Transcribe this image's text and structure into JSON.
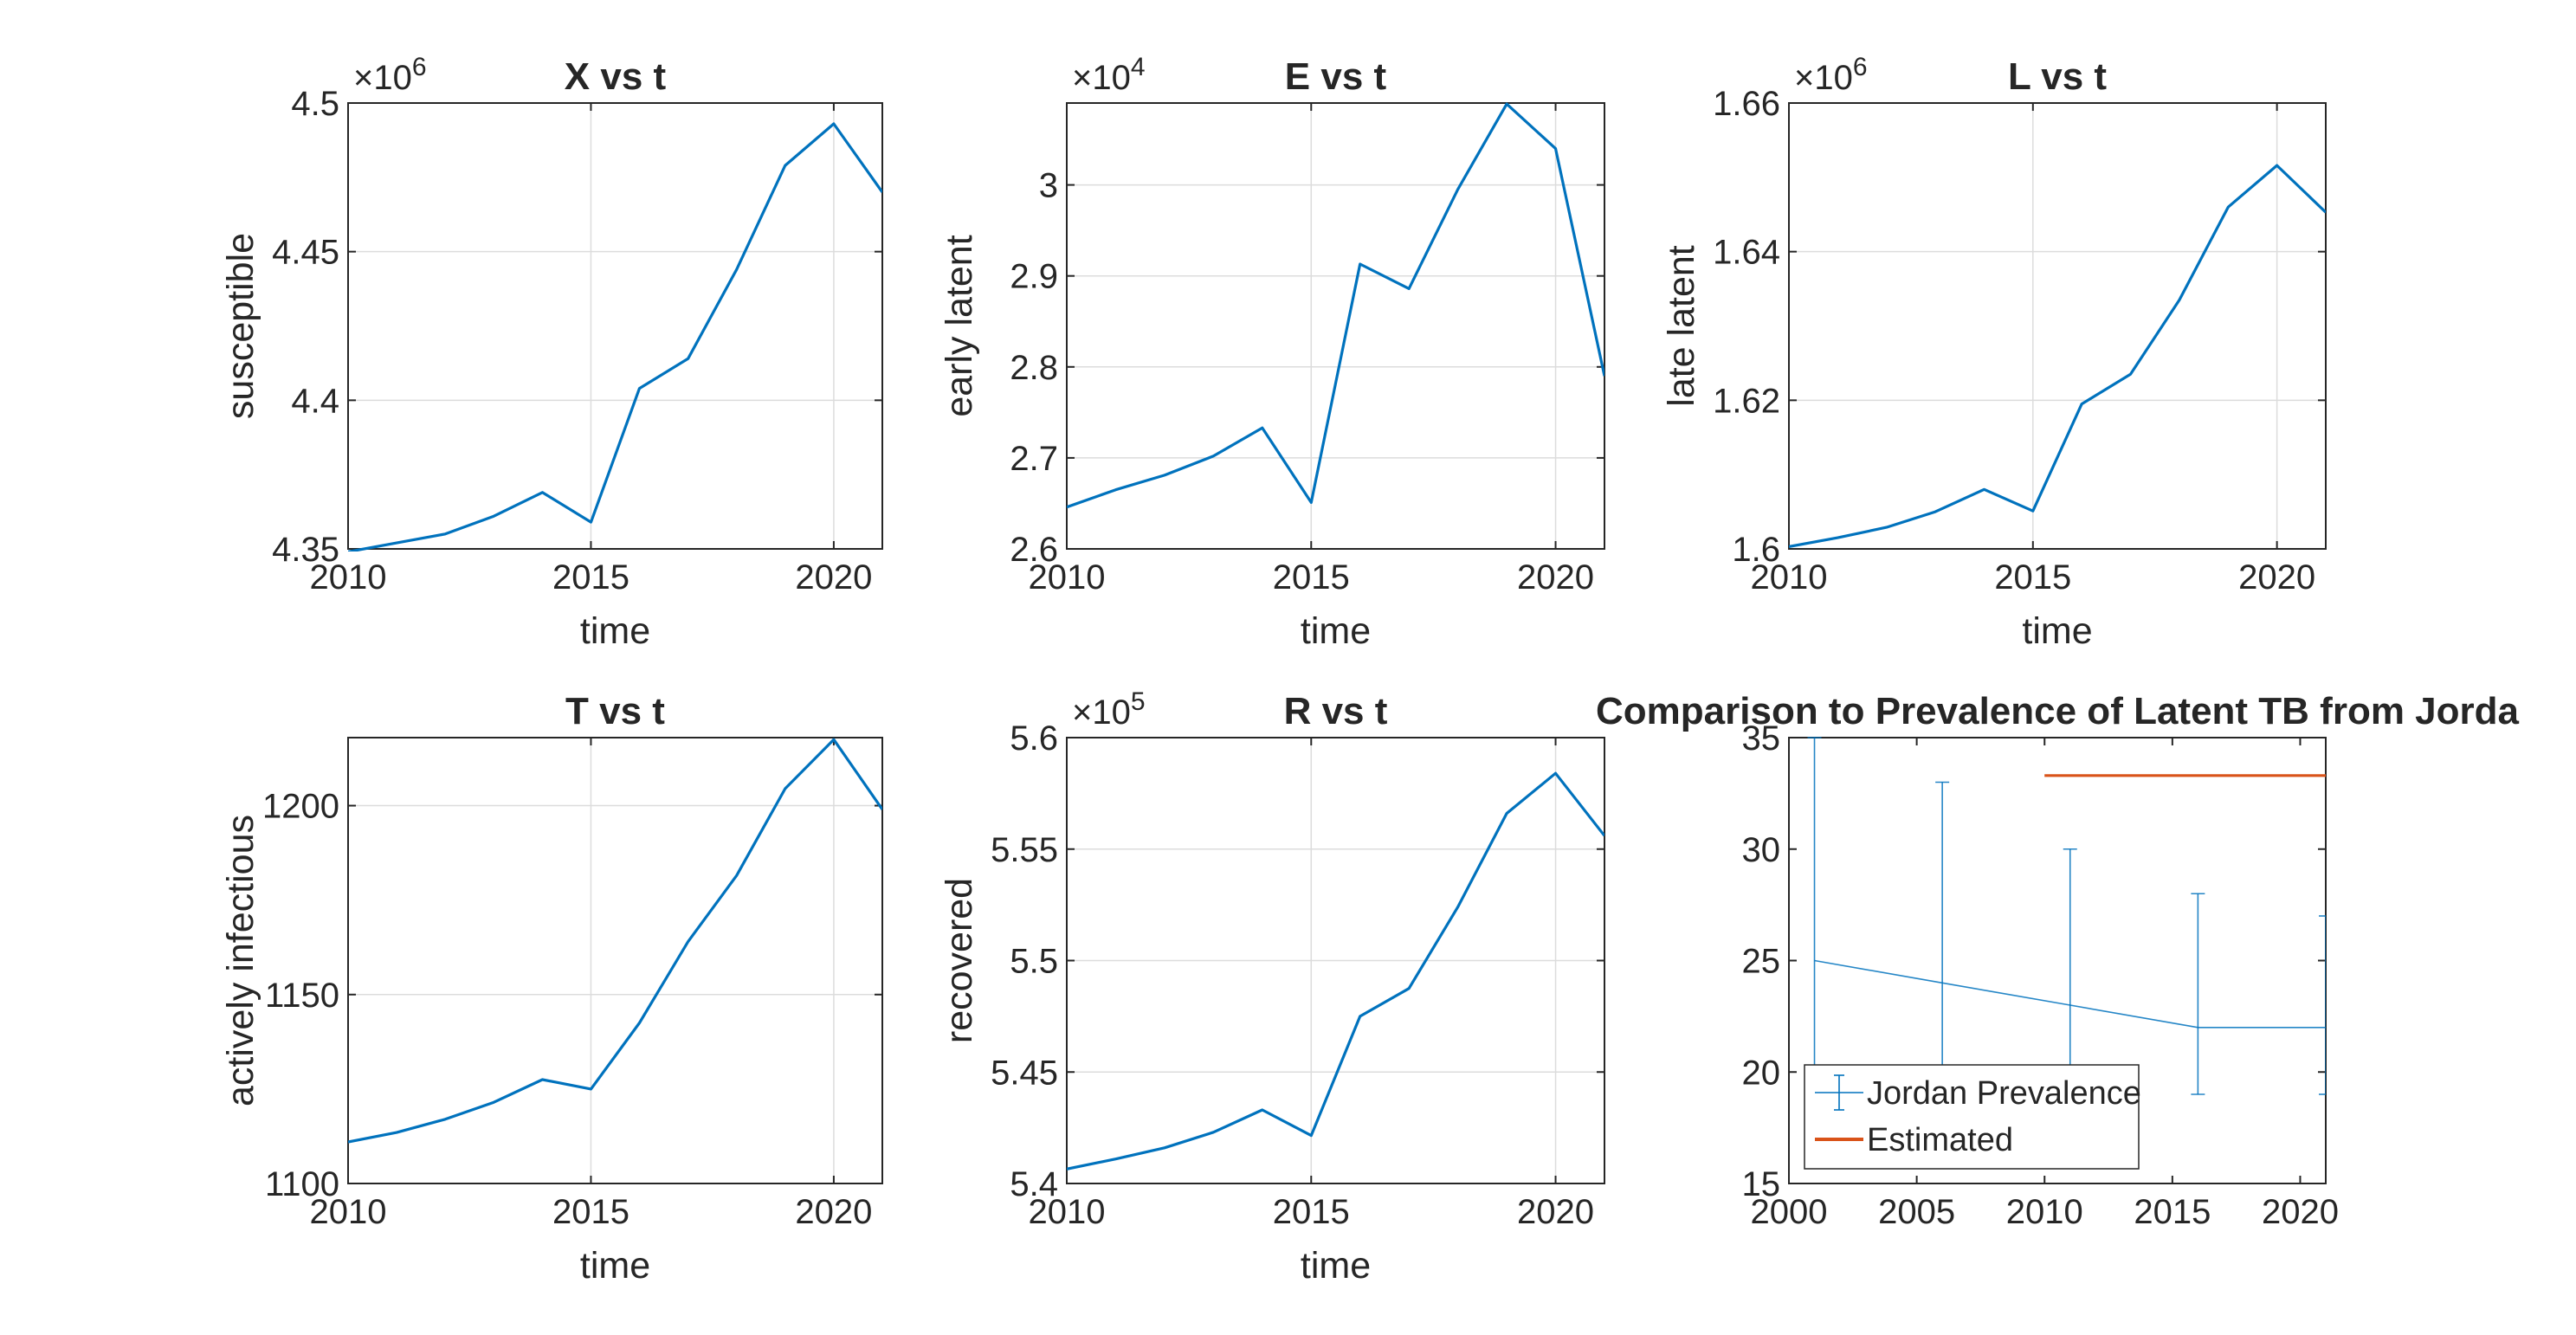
{
  "figure": {
    "background": "#ffffff",
    "line_color": "#0072BD",
    "estimate_color": "#D95319"
  },
  "chart_data": [
    {
      "type": "line",
      "title": "X vs t",
      "xlabel": "time",
      "ylabel": "susceptible",
      "exponent": "×10^6",
      "xlim": [
        2010,
        2021
      ],
      "ylim": [
        4.35,
        4.5
      ],
      "xticks": [
        "2010",
        "2015",
        "2020"
      ],
      "yticks": [
        "4.35",
        "4.4",
        "4.45",
        "4.5"
      ],
      "grid": true,
      "series": [
        {
          "x": [
            2010,
            2011,
            2012,
            2013,
            2014,
            2015,
            2016,
            2017,
            2018,
            2019,
            2020,
            2021
          ],
          "values": [
            4.349,
            4.352,
            4.355,
            4.361,
            4.369,
            4.359,
            4.404,
            4.414,
            4.444,
            4.479,
            4.493,
            4.47
          ]
        }
      ]
    },
    {
      "type": "line",
      "title": "E vs t",
      "xlabel": "time",
      "ylabel": "early latent",
      "exponent": "×10^4",
      "xlim": [
        2010,
        2021
      ],
      "ylim": [
        2.6,
        3.09
      ],
      "xticks": [
        "2010",
        "2015",
        "2020"
      ],
      "yticks": [
        "2.6",
        "2.7",
        "2.8",
        "2.9",
        "3"
      ],
      "grid": true,
      "series": [
        {
          "x": [
            2010,
            2011,
            2012,
            2013,
            2014,
            2015,
            2016,
            2017,
            2018,
            2019,
            2020,
            2021
          ],
          "values": [
            2.646,
            2.665,
            2.681,
            2.702,
            2.733,
            2.651,
            2.913,
            2.886,
            2.995,
            3.089,
            3.04,
            2.79
          ]
        }
      ]
    },
    {
      "type": "line",
      "title": "L vs t",
      "xlabel": "time",
      "ylabel": "late latent",
      "exponent": "×10^6",
      "xlim": [
        2010,
        2021
      ],
      "ylim": [
        1.6,
        1.66
      ],
      "xticks": [
        "2010",
        "2015",
        "2020"
      ],
      "yticks": [
        "1.6",
        "1.62",
        "1.64",
        "1.66"
      ],
      "grid": true,
      "series": [
        {
          "x": [
            2010,
            2011,
            2012,
            2013,
            2014,
            2015,
            2016,
            2017,
            2018,
            2019,
            2020,
            2021
          ],
          "values": [
            1.6003,
            1.6015,
            1.6029,
            1.605,
            1.608,
            1.6051,
            1.6195,
            1.6235,
            1.6335,
            1.646,
            1.6516,
            1.6453
          ]
        }
      ]
    },
    {
      "type": "line",
      "title": "T vs t",
      "xlabel": "time",
      "ylabel": "actively infectious",
      "exponent": "",
      "xlim": [
        2010,
        2021
      ],
      "ylim": [
        1100,
        1218
      ],
      "xticks": [
        "2010",
        "2015",
        "2020"
      ],
      "yticks": [
        "1100",
        "1150",
        "1200"
      ],
      "grid": true,
      "series": [
        {
          "x": [
            2010,
            2011,
            2012,
            2013,
            2014,
            2015,
            2016,
            2017,
            2018,
            2019,
            2020,
            2021
          ],
          "values": [
            1111,
            1113.5,
            1117,
            1121.5,
            1127.5,
            1125,
            1142.5,
            1164,
            1181.5,
            1204.5,
            1217.5,
            1199
          ]
        }
      ]
    },
    {
      "type": "line",
      "title": "R vs t",
      "xlabel": "time",
      "ylabel": "recovered",
      "exponent": "×10^5",
      "xlim": [
        2010,
        2021
      ],
      "ylim": [
        5.4,
        5.6
      ],
      "xticks": [
        "2010",
        "2015",
        "2020"
      ],
      "yticks": [
        "5.4",
        "5.45",
        "5.5",
        "5.55",
        "5.6"
      ],
      "grid": true,
      "series": [
        {
          "x": [
            2010,
            2011,
            2012,
            2013,
            2014,
            2015,
            2016,
            2017,
            2018,
            2019,
            2020,
            2021
          ],
          "values": [
            5.4065,
            5.411,
            5.416,
            5.423,
            5.433,
            5.4215,
            5.475,
            5.4875,
            5.524,
            5.566,
            5.584,
            5.556
          ]
        }
      ]
    },
    {
      "type": "line",
      "title": "Comparison to Prevalence of Latent TB from Jorda",
      "xlabel": "",
      "ylabel": "",
      "exponent": "",
      "xlim": [
        2000,
        2021
      ],
      "ylim": [
        15,
        35
      ],
      "xticks": [
        "2000",
        "2005",
        "2010",
        "2015",
        "2020"
      ],
      "yticks": [
        "15",
        "20",
        "25",
        "30",
        "35"
      ],
      "grid": false,
      "legend": {
        "placement": "bottom-left",
        "entries": [
          "Jordan Prevalence",
          "Estimated"
        ]
      },
      "series": [
        {
          "name": "Jordan Prevalence",
          "x": [
            2001,
            2006,
            2011,
            2016,
            2021
          ],
          "values": [
            25,
            24,
            23,
            22,
            22
          ],
          "error_low": [
            20,
            20,
            20,
            19,
            19
          ],
          "error_high": [
            35,
            33,
            30,
            28,
            27
          ]
        },
        {
          "name": "Estimated",
          "x": [
            2010,
            2021
          ],
          "values": [
            33.3,
            33.3
          ]
        }
      ]
    }
  ]
}
